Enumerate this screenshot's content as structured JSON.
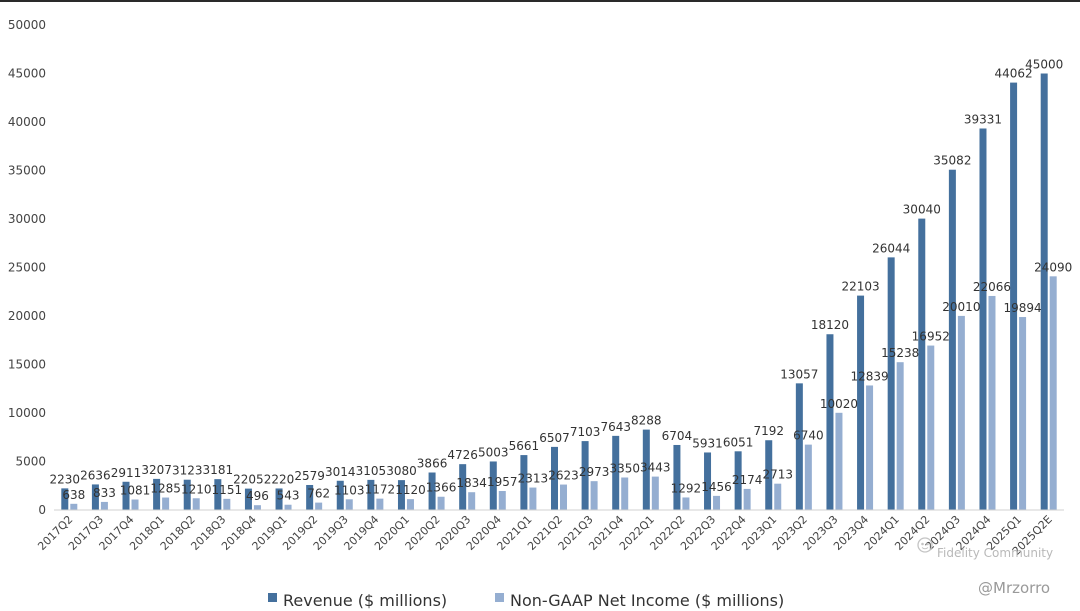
{
  "chart_data": {
    "type": "bar",
    "categories": [
      "2017Q2",
      "2017Q3",
      "2017Q4",
      "2018Q1",
      "2018Q2",
      "2018Q3",
      "2018Q4",
      "2019Q1",
      "2019Q2",
      "2019Q3",
      "2019Q4",
      "2020Q1",
      "2020Q2",
      "2020Q3",
      "2020Q4",
      "2021Q1",
      "2021Q2",
      "2021Q3",
      "2021Q4",
      "2022Q1",
      "2022Q2",
      "2022Q3",
      "2022Q4",
      "2023Q1",
      "2023Q2",
      "2023Q3",
      "2023Q4",
      "2024Q1",
      "2024Q2",
      "2024Q3",
      "2024Q4",
      "2025Q1",
      "2025Q2E"
    ],
    "series": [
      {
        "name": "Revenue ($ millions)",
        "color": "#44709d",
        "values": [
          2230,
          2636,
          2911,
          3207,
          3123,
          3181,
          2205,
          2220,
          2579,
          3014,
          3105,
          3080,
          3866,
          4726,
          5003,
          5661,
          6507,
          7103,
          7643,
          8288,
          6704,
          5931,
          6051,
          7192,
          13057,
          18120,
          22103,
          26044,
          30040,
          35082,
          39331,
          44062,
          45000
        ]
      },
      {
        "name": "Non-GAAP Net Income ($ millions)",
        "color": "#95aed1",
        "values": [
          638,
          833,
          1081,
          1285,
          1210,
          1151,
          496,
          543,
          762,
          1103,
          1172,
          1120,
          1366,
          1834,
          1957,
          2313,
          2623,
          2973,
          3350,
          3443,
          1292,
          1456,
          2174,
          2713,
          6740,
          10020,
          12839,
          15238,
          16952,
          20010,
          22066,
          19894,
          24090
        ]
      }
    ],
    "xlabel": "",
    "ylabel": "",
    "ylim": [
      0,
      50000
    ],
    "yticks": [
      0,
      5000,
      10000,
      15000,
      20000,
      25000,
      30000,
      35000,
      40000,
      45000,
      50000
    ],
    "grid": false,
    "legend_position": "bottom-center"
  },
  "watermarks": [
    "Fidelity Community",
    "@Mrzorro"
  ],
  "watermark_icon": "community-logo-icon"
}
